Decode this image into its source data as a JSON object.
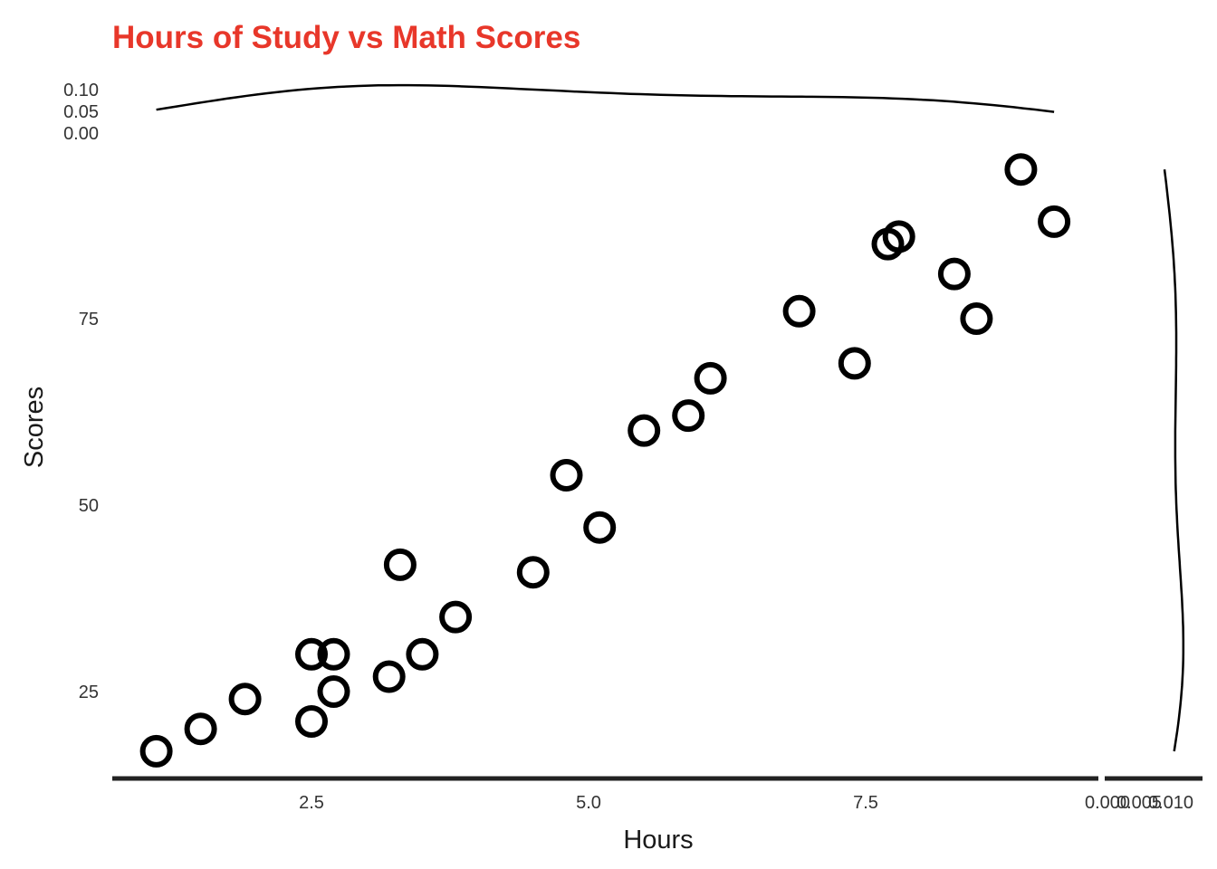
{
  "chart_data": {
    "type": "scatter",
    "title": "Hours of Study vs Math Scores",
    "title_color": "#e8372a",
    "xlabel": "Hours",
    "ylabel": "Scores",
    "xlim": [
      0.6,
      9.5
    ],
    "ylim": [
      13,
      100
    ],
    "x_ticks": [
      "2.5",
      "5.0",
      "7.5"
    ],
    "y_ticks": [
      "25",
      "50",
      "75"
    ],
    "marginal_top": {
      "type": "density",
      "ticks": [
        "0.00",
        "0.05",
        "0.10"
      ]
    },
    "marginal_right": {
      "type": "density",
      "ticks": [
        "0.000",
        "0.005",
        "0.010"
      ]
    },
    "grid": false,
    "point_color": "#000000",
    "x": [
      1.1,
      1.5,
      1.9,
      2.5,
      2.5,
      2.7,
      2.7,
      3.2,
      3.3,
      3.5,
      3.8,
      4.5,
      4.8,
      5.1,
      5.5,
      5.9,
      6.1,
      6.9,
      7.4,
      7.7,
      7.8,
      8.3,
      8.5,
      8.9,
      9.2
    ],
    "y": [
      17,
      20,
      24,
      21,
      30,
      25,
      30,
      27,
      42,
      30,
      35,
      41,
      54,
      47,
      60,
      62,
      67,
      76,
      69,
      85,
      86,
      81,
      75,
      95,
      88
    ]
  }
}
